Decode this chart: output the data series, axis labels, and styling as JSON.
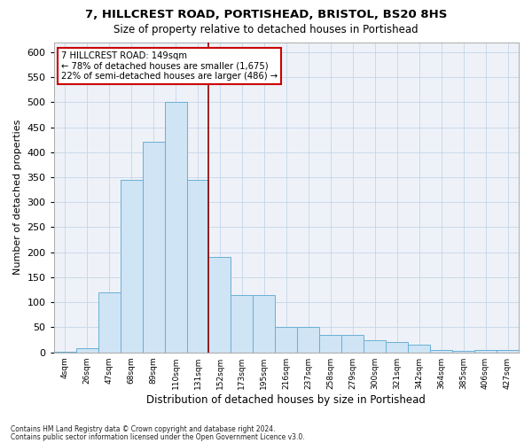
{
  "title": "7, HILLCREST ROAD, PORTISHEAD, BRISTOL, BS20 8HS",
  "subtitle": "Size of property relative to detached houses in Portishead",
  "xlabel": "Distribution of detached houses by size in Portishead",
  "ylabel": "Number of detached properties",
  "footnote1": "Contains HM Land Registry data © Crown copyright and database right 2024.",
  "footnote2": "Contains public sector information licensed under the Open Government Licence v3.0.",
  "bar_labels": [
    "4sqm",
    "26sqm",
    "47sqm",
    "68sqm",
    "89sqm",
    "110sqm",
    "131sqm",
    "152sqm",
    "173sqm",
    "195sqm",
    "216sqm",
    "237sqm",
    "258sqm",
    "279sqm",
    "300sqm",
    "321sqm",
    "342sqm",
    "364sqm",
    "385sqm",
    "406sqm",
    "427sqm"
  ],
  "bar_values": [
    2,
    8,
    120,
    345,
    420,
    500,
    345,
    190,
    115,
    115,
    50,
    50,
    35,
    35,
    25,
    20,
    15,
    5,
    3,
    5,
    5
  ],
  "bar_color": "#cfe4f5",
  "bar_edge_color": "#6aafd6",
  "vline_color": "#8b0000",
  "vline_pos": 6.5,
  "ylim_max": 620,
  "yticks": [
    0,
    50,
    100,
    150,
    200,
    250,
    300,
    350,
    400,
    450,
    500,
    550,
    600
  ],
  "annotation_title": "7 HILLCREST ROAD: 149sqm",
  "annotation_line1": "← 78% of detached houses are smaller (1,675)",
  "annotation_line2": "22% of semi-detached houses are larger (486) →",
  "annotation_box_edge": "#cc0000",
  "bg_color": "#eef2f8",
  "grid_color": "#c5d5e8"
}
